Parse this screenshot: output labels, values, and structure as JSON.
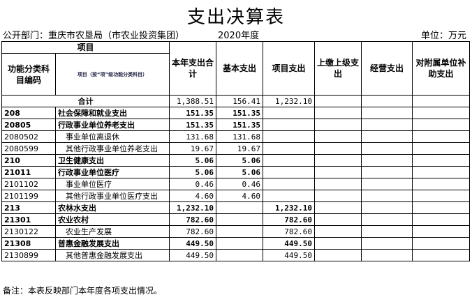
{
  "title": "支出决算表",
  "department": "公开部门：重庆市农垦局（市农业投资集团）",
  "year": "2020年度",
  "unit": "单位：万元",
  "headers": {
    "item": "项目",
    "code": "功能分类科目编码",
    "item_name": "项目（按“项”级功能分类科目）",
    "total": "本年支出合计",
    "basic": "基本支出",
    "project": "项目支出",
    "upper": "上缴上级支出",
    "business": "经营支出",
    "subsidy": "对附属单位补助支出"
  },
  "total_row": {
    "label": "合计",
    "total": "1,388.51",
    "basic": "156.41",
    "project": "1,232.10"
  },
  "rows": [
    {
      "code": "208",
      "name": "社会保障和就业支出",
      "total": "151.35",
      "basic": "151.35",
      "project": "",
      "bold": true
    },
    {
      "code": "20805",
      "name": "行政事业单位养老支出",
      "total": "151.35",
      "basic": "151.35",
      "project": "",
      "bold": true
    },
    {
      "code": "2080502",
      "name": "事业单位离退休",
      "total": "131.68",
      "basic": "131.68",
      "project": ""
    },
    {
      "code": "2080599",
      "name": "其他行政事业单位养老支出",
      "total": "19.67",
      "basic": "19.67",
      "project": ""
    },
    {
      "code": "210",
      "name": "卫生健康支出",
      "total": "5.06",
      "basic": "5.06",
      "project": "",
      "bold": true
    },
    {
      "code": "21011",
      "name": "行政事业单位医疗",
      "total": "5.06",
      "basic": "5.06",
      "project": "",
      "bold": true
    },
    {
      "code": "2101102",
      "name": "事业单位医疗",
      "total": "0.46",
      "basic": "0.46",
      "project": ""
    },
    {
      "code": "2101199",
      "name": "其他行政事业单位医疗支出",
      "total": "4.60",
      "basic": "4.60",
      "project": ""
    },
    {
      "code": "213",
      "name": "农林水支出",
      "total": "1,232.10",
      "basic": "",
      "project": "1,232.10",
      "bold": true
    },
    {
      "code": "21301",
      "name": "农业农村",
      "total": "782.60",
      "basic": "",
      "project": "782.60",
      "bold": true
    },
    {
      "code": "2130122",
      "name": "农业生产发展",
      "total": "782.60",
      "basic": "",
      "project": "782.60"
    },
    {
      "code": "21308",
      "name": "普惠金融发展支出",
      "total": "449.50",
      "basic": "",
      "project": "449.50",
      "bold": true
    },
    {
      "code": "2130899",
      "name": "其他普惠金融发展支出",
      "total": "449.50",
      "basic": "",
      "project": "449.50"
    }
  ],
  "footnote": "备注：本表反映部门本年度各项支出情况。"
}
